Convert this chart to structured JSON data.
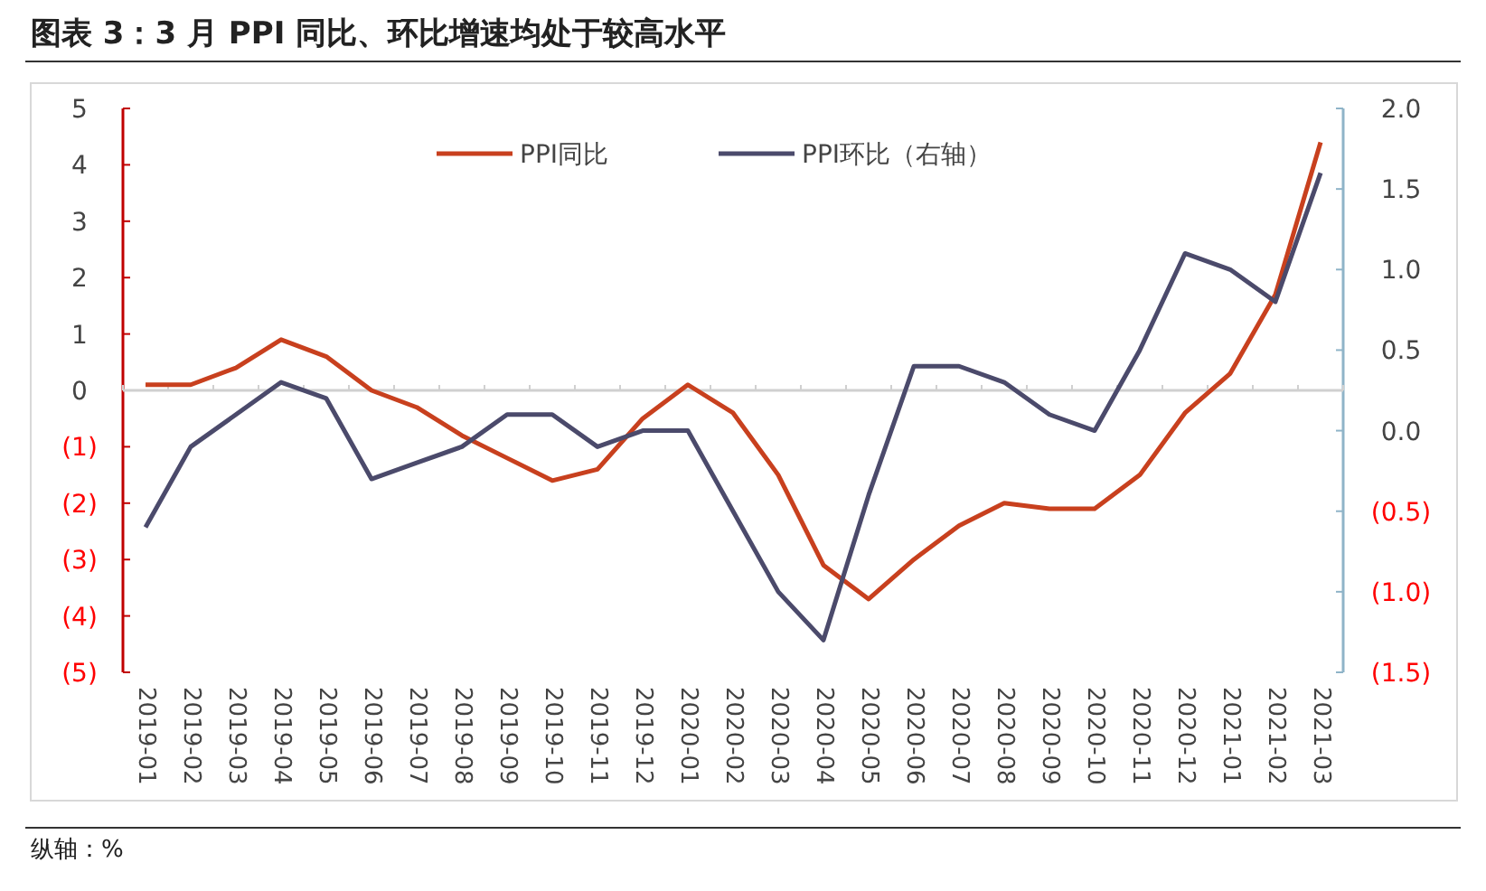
{
  "chart_data": {
    "type": "line",
    "title": "图表 3：3 月 PPI 同比、环比增速均处于较高水平",
    "categories": [
      "2019-01",
      "2019-02",
      "2019-03",
      "2019-04",
      "2019-05",
      "2019-06",
      "2019-07",
      "2019-08",
      "2019-09",
      "2019-10",
      "2019-11",
      "2019-12",
      "2020-01",
      "2020-02",
      "2020-03",
      "2020-04",
      "2020-05",
      "2020-06",
      "2020-07",
      "2020-08",
      "2020-09",
      "2020-10",
      "2020-11",
      "2020-12",
      "2021-01",
      "2021-02",
      "2021-03"
    ],
    "series": [
      {
        "name": "PPI同比",
        "color": "#c8401e",
        "values": [
          0.1,
          0.1,
          0.4,
          0.9,
          0.6,
          0.0,
          -0.3,
          -0.8,
          -1.2,
          -1.6,
          -1.4,
          -0.5,
          0.1,
          -0.4,
          -1.5,
          -3.1,
          -3.7,
          -3.0,
          -2.4,
          -2.0,
          -2.1,
          -2.1,
          -1.5,
          -0.4,
          0.3,
          1.7,
          4.4
        ]
      },
      {
        "name": "PPI环比（右轴）",
        "color": "#4b4a6b",
        "axis": "y2",
        "values": [
          -0.6,
          -0.1,
          0.1,
          0.3,
          0.2,
          -0.3,
          -0.2,
          -0.1,
          0.1,
          0.1,
          -0.1,
          0.0,
          0.0,
          -0.5,
          -1.0,
          -1.3,
          -0.4,
          0.4,
          0.4,
          0.3,
          0.1,
          0.0,
          0.5,
          1.1,
          1.0,
          0.8,
          1.6
        ]
      }
    ],
    "ylim": [
      -5,
      5
    ],
    "yticks": [
      {
        "value": -5,
        "label": "(5)"
      },
      {
        "value": -4,
        "label": "(4)"
      },
      {
        "value": -3,
        "label": "(3)"
      },
      {
        "value": -2,
        "label": "(2)"
      },
      {
        "value": -1,
        "label": "(1)"
      },
      0,
      1,
      2,
      3,
      4,
      5
    ],
    "y2lim": [
      -1.5,
      2.0
    ],
    "y2ticks": [
      {
        "value": -1.5,
        "label": "(1.5)"
      },
      {
        "value": -1.0,
        "label": "(1.0)"
      },
      {
        "value": -0.5,
        "label": "(0.5)"
      },
      {
        "value": 0,
        "label": "0.0"
      },
      {
        "value": 0.5,
        "label": "0.5"
      },
      {
        "value": 1.0,
        "label": "1.0"
      },
      {
        "value": 1.5,
        "label": "1.5"
      },
      {
        "value": 2.0,
        "label": "2.0"
      }
    ],
    "legend": "top",
    "marker": "none",
    "annotations": [
      "纵轴：%"
    ]
  }
}
